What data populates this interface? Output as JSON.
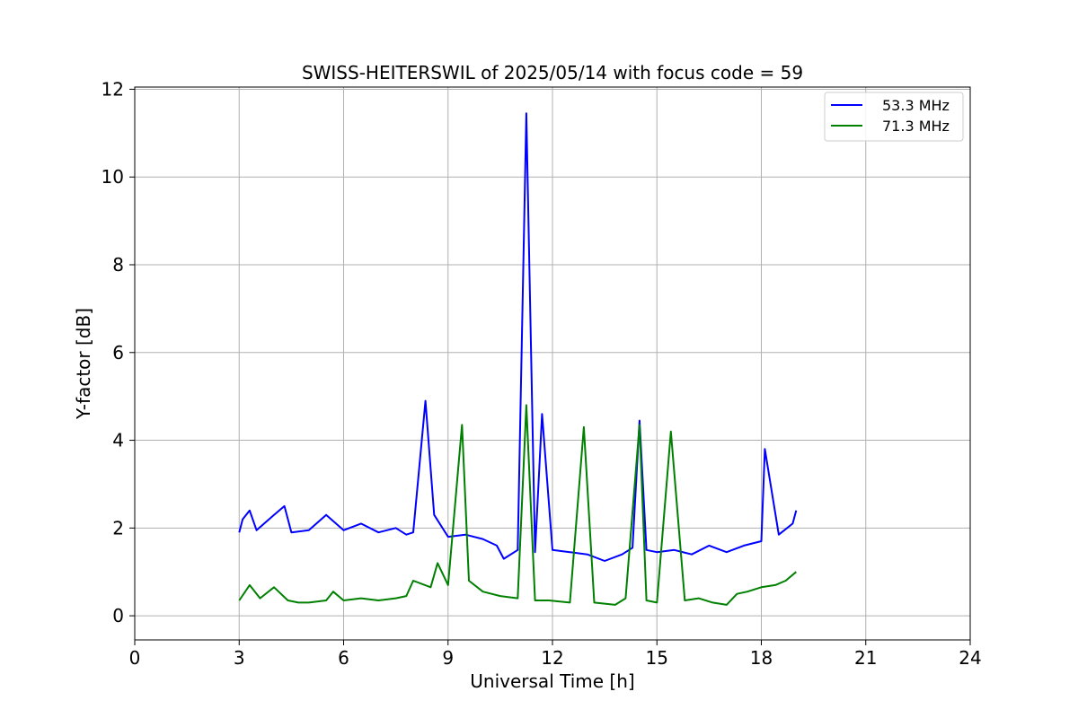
{
  "chart_data": {
    "type": "line",
    "title": "SWISS-HEITERSWIL of 2025/05/14 with focus code = 59",
    "xlabel": "Universal Time [h]",
    "ylabel": "Y-factor [dB]",
    "xlim": [
      0,
      24
    ],
    "ylim": [
      -0.55,
      12.05
    ],
    "xticks": [
      0,
      3,
      6,
      9,
      12,
      15,
      18,
      21,
      24
    ],
    "xtick_labels": [
      "0",
      "3",
      "6",
      "9",
      "12",
      "15",
      "18",
      "21",
      "24"
    ],
    "yticks": [
      0,
      2,
      4,
      6,
      8,
      10,
      12
    ],
    "ytick_labels": [
      "0",
      "2",
      "4",
      "6",
      "8",
      "10",
      "12"
    ],
    "grid": true,
    "legend_position": "top-right",
    "series": [
      {
        "name": "53.3 MHz",
        "color": "#0000ff",
        "x": [
          3.0,
          3.1,
          3.3,
          3.5,
          4.0,
          4.3,
          4.5,
          5.0,
          5.5,
          6.0,
          6.5,
          7.0,
          7.5,
          7.8,
          8.0,
          8.35,
          8.6,
          9.0,
          9.5,
          10.0,
          10.4,
          10.6,
          11.0,
          11.25,
          11.5,
          11.7,
          12.0,
          12.5,
          13.0,
          13.5,
          14.0,
          14.3,
          14.5,
          14.7,
          15.0,
          15.5,
          16.0,
          16.5,
          17.0,
          17.5,
          18.0,
          18.1,
          18.5,
          18.9,
          19.0
        ],
        "y": [
          1.9,
          2.2,
          2.4,
          1.95,
          2.3,
          2.5,
          1.9,
          1.95,
          2.3,
          1.95,
          2.1,
          1.9,
          2.0,
          1.85,
          1.9,
          4.9,
          2.3,
          1.8,
          1.85,
          1.75,
          1.6,
          1.3,
          1.5,
          11.45,
          1.45,
          4.6,
          1.5,
          1.45,
          1.4,
          1.25,
          1.4,
          1.55,
          4.45,
          1.5,
          1.45,
          1.5,
          1.4,
          1.6,
          1.45,
          1.6,
          1.7,
          3.8,
          1.85,
          2.1,
          2.4
        ]
      },
      {
        "name": "71.3 MHz",
        "color": "#008000",
        "x": [
          3.0,
          3.3,
          3.6,
          4.0,
          4.4,
          4.7,
          5.0,
          5.5,
          5.7,
          6.0,
          6.5,
          7.0,
          7.5,
          7.8,
          8.0,
          8.5,
          8.7,
          9.0,
          9.4,
          9.6,
          10.0,
          10.5,
          11.0,
          11.25,
          11.5,
          11.9,
          12.5,
          12.9,
          13.2,
          13.8,
          14.1,
          14.5,
          14.7,
          15.0,
          15.4,
          15.8,
          16.2,
          16.6,
          17.0,
          17.3,
          17.6,
          18.0,
          18.4,
          18.7,
          19.0
        ],
        "y": [
          0.35,
          0.7,
          0.4,
          0.65,
          0.35,
          0.3,
          0.3,
          0.35,
          0.55,
          0.35,
          0.4,
          0.35,
          0.4,
          0.45,
          0.8,
          0.65,
          1.2,
          0.7,
          4.35,
          0.8,
          0.55,
          0.45,
          0.4,
          4.8,
          0.35,
          0.35,
          0.3,
          4.3,
          0.3,
          0.25,
          0.4,
          4.35,
          0.35,
          0.3,
          4.2,
          0.35,
          0.4,
          0.3,
          0.25,
          0.5,
          0.55,
          0.65,
          0.7,
          0.8,
          1.0
        ]
      }
    ]
  }
}
